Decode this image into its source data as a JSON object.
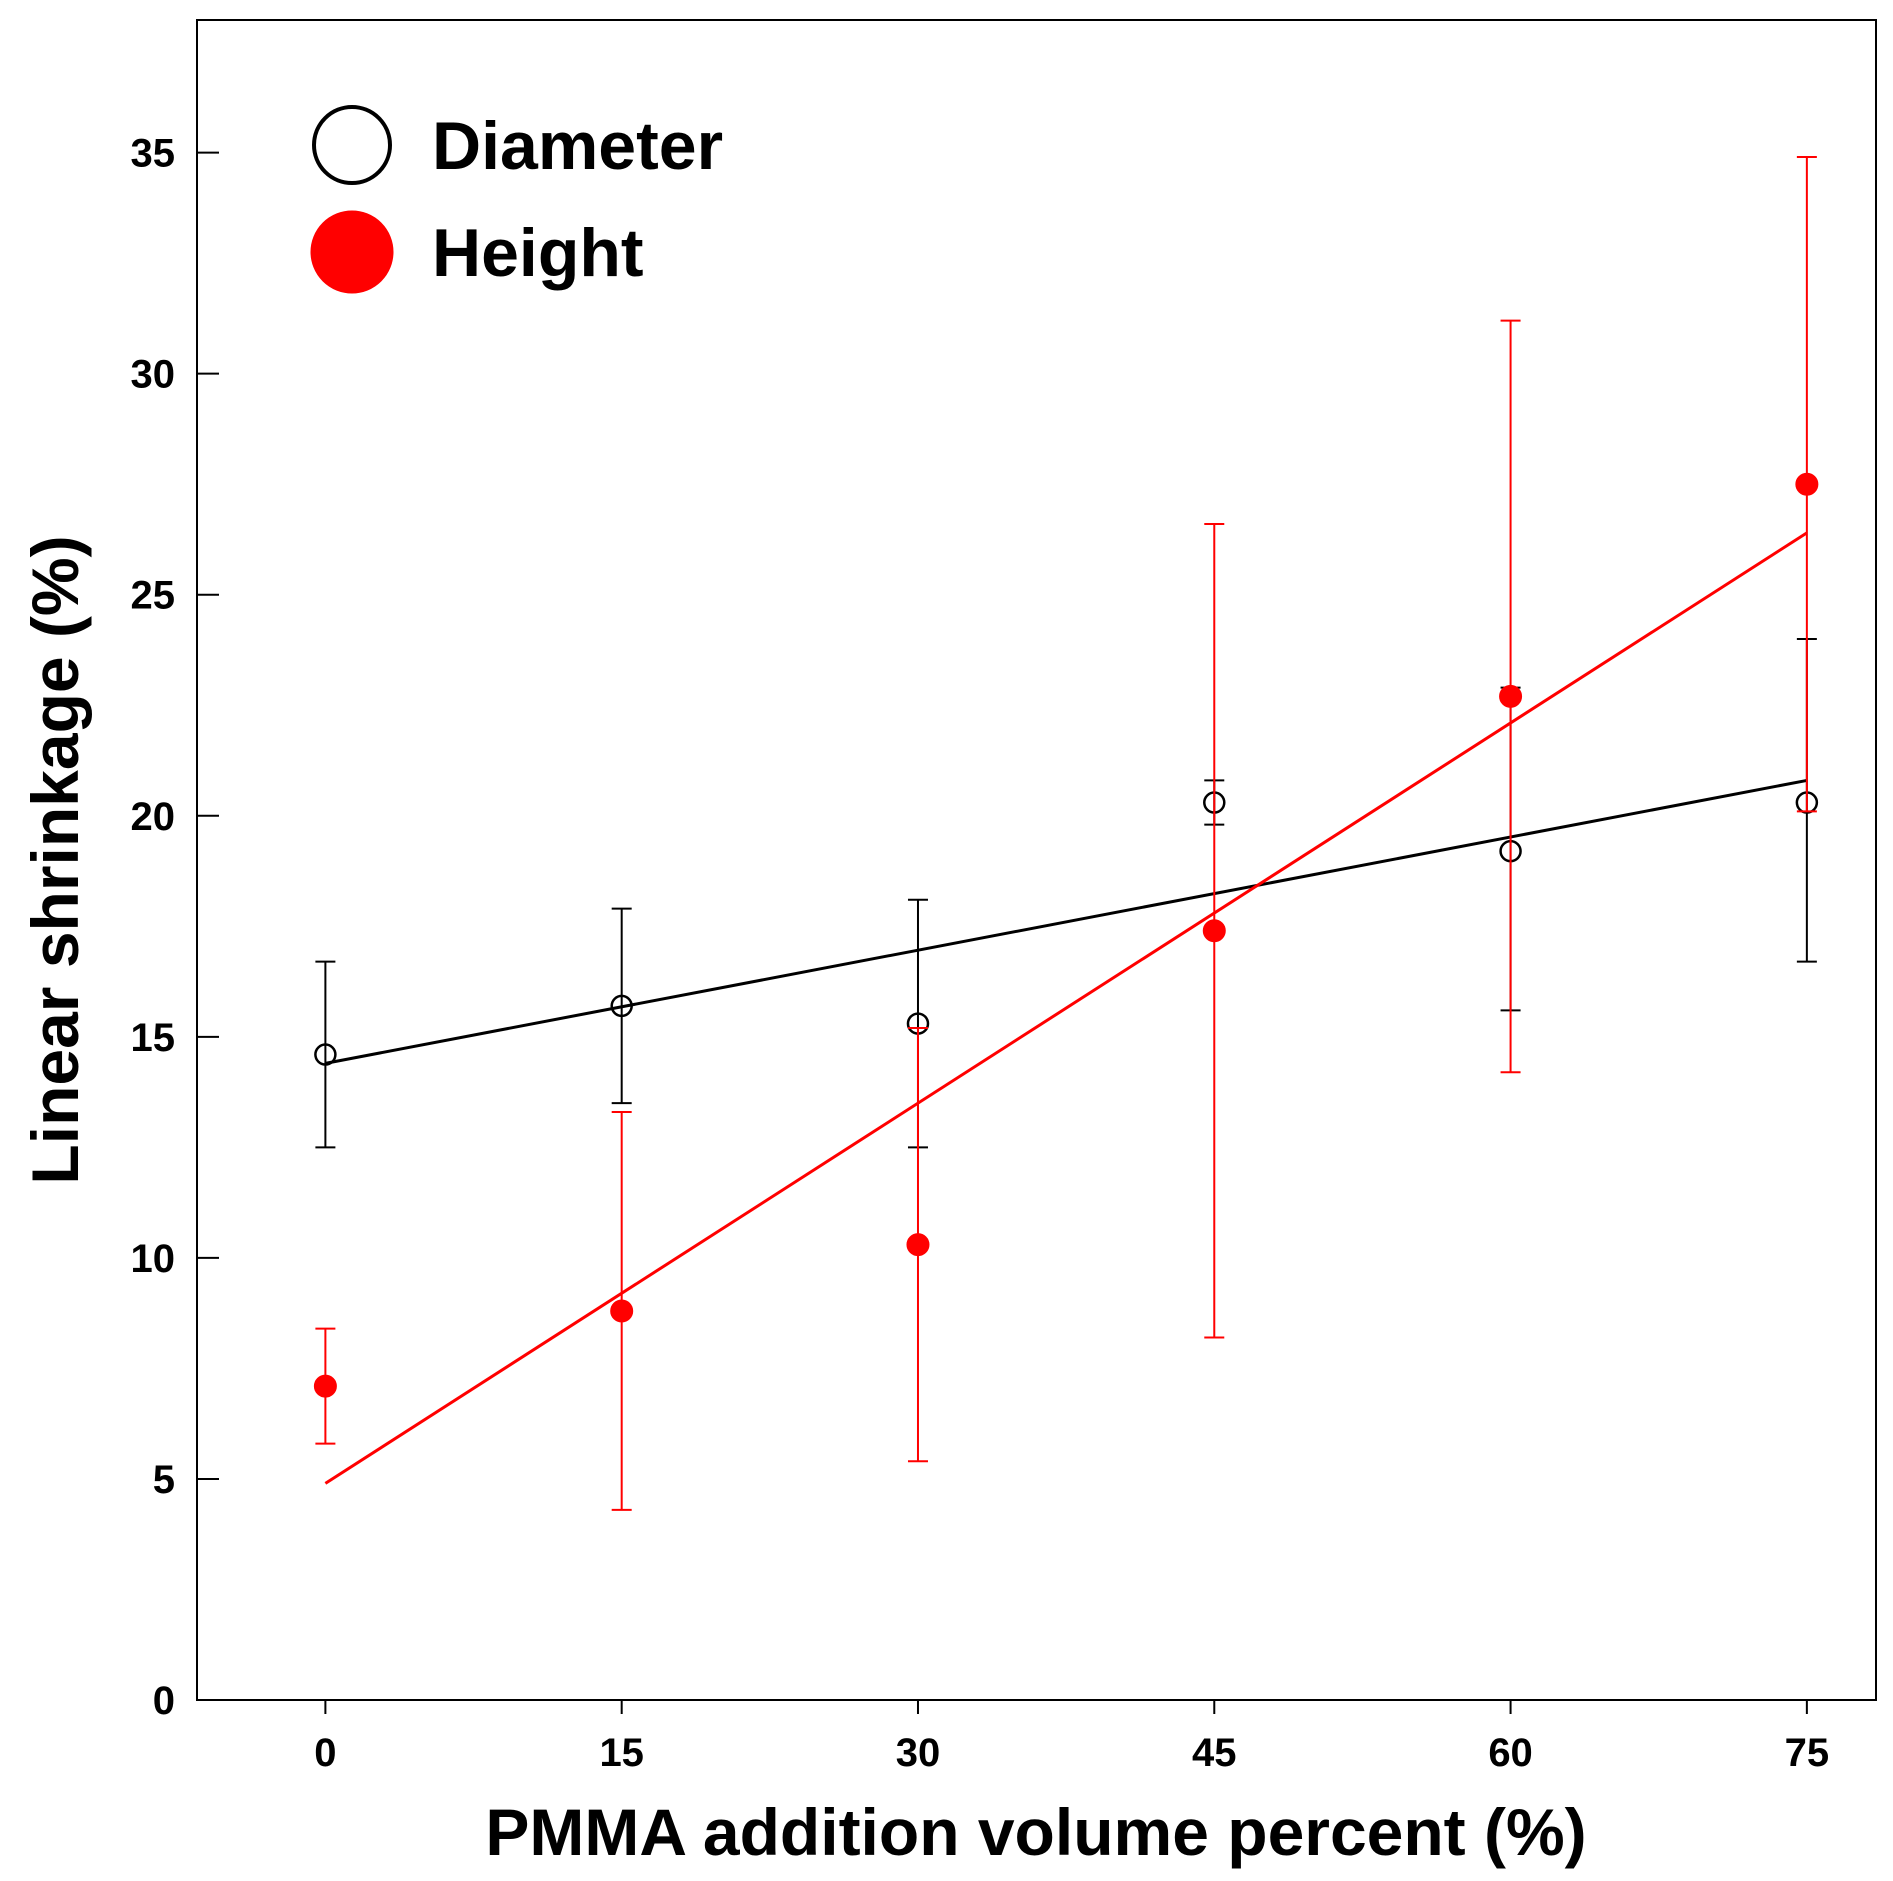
{
  "chart_data": {
    "type": "scatter",
    "title": "",
    "xlabel": "PMMA addition volume percent (%)",
    "ylabel": "Linear shrinkage (%)",
    "xlim": [
      -6.5,
      78.5
    ],
    "ylim": [
      0,
      38
    ],
    "xticks": [
      0,
      15,
      30,
      45,
      60,
      75
    ],
    "yticks": [
      0,
      5,
      10,
      15,
      20,
      25,
      30,
      35
    ],
    "grid": false,
    "legend_position": "top-left",
    "series": [
      {
        "name": "Diameter",
        "color": "#000000",
        "marker": "open-circle",
        "x": [
          0,
          15,
          30,
          45,
          60,
          75
        ],
        "y": [
          14.6,
          15.7,
          15.3,
          20.3,
          19.2,
          20.3
        ],
        "err_low": [
          12.5,
          13.5,
          12.5,
          19.8,
          15.6,
          16.7
        ],
        "err_high": [
          16.7,
          17.9,
          18.1,
          20.8,
          22.9,
          24.0
        ],
        "fit": {
          "x": [
            0,
            75
          ],
          "y": [
            14.4,
            20.8
          ]
        }
      },
      {
        "name": "Height",
        "color": "#ff0000",
        "marker": "filled-circle",
        "x": [
          0,
          15,
          30,
          45,
          60,
          75
        ],
        "y": [
          7.1,
          8.8,
          10.3,
          17.4,
          22.7,
          27.5
        ],
        "err_low": [
          5.8,
          4.3,
          5.4,
          8.2,
          14.2,
          20.1
        ],
        "err_high": [
          8.4,
          13.3,
          15.2,
          26.6,
          31.2,
          34.9
        ],
        "fit": {
          "x": [
            0,
            75
          ],
          "y": [
            4.9,
            26.4
          ]
        }
      }
    ]
  }
}
